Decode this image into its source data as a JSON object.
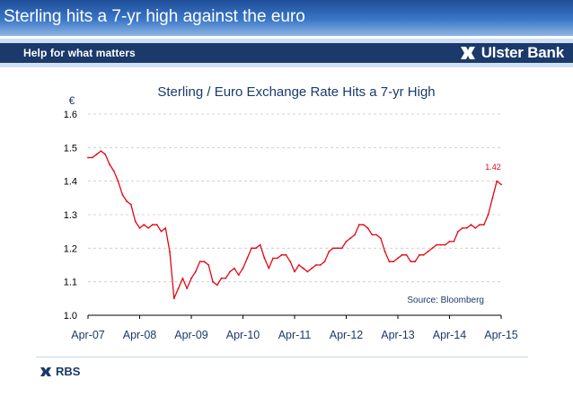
{
  "slide": {
    "title": "Sterling hits a 7-yr high against the euro"
  },
  "banner": {
    "tagline": "Help for what matters",
    "brand": "Ulster Bank"
  },
  "footer": {
    "brand": "RBS"
  },
  "colors": {
    "line": "#e30613",
    "axis_text": "#1b3a6b",
    "banner": "#1b3a6b"
  },
  "chart_data": {
    "type": "line",
    "title": "Sterling / Euro Exchange Rate Hits a 7-yr High",
    "ylabel": "€",
    "xlabel": "",
    "ylim": [
      1.0,
      1.6
    ],
    "yticks": [
      "1.0",
      "1.1",
      "1.2",
      "1.3",
      "1.4",
      "1.5",
      "1.6"
    ],
    "xticks": [
      "Apr-07",
      "Apr-08",
      "Apr-09",
      "Apr-10",
      "Apr-11",
      "Apr-12",
      "Apr-13",
      "Apr-14",
      "Apr-15"
    ],
    "grid": "horizontal dashed",
    "annotation_label": "1.42",
    "source": "Source: Bloomberg",
    "series": [
      {
        "x": [
          "Apr-07",
          "May-07",
          "Jun-07",
          "Jul-07",
          "Aug-07",
          "Sep-07",
          "Oct-07",
          "Nov-07",
          "Dec-07",
          "Jan-08",
          "Feb-08",
          "Mar-08",
          "Apr-08",
          "May-08",
          "Jun-08",
          "Jul-08",
          "Aug-08",
          "Sep-08",
          "Oct-08",
          "Nov-08",
          "Dec-08",
          "Jan-09",
          "Feb-09",
          "Mar-09",
          "Apr-09",
          "May-09",
          "Jun-09",
          "Jul-09",
          "Aug-09",
          "Sep-09",
          "Oct-09",
          "Nov-09",
          "Dec-09",
          "Jan-10",
          "Feb-10",
          "Mar-10",
          "Apr-10",
          "May-10",
          "Jun-10",
          "Jul-10",
          "Aug-10",
          "Sep-10",
          "Oct-10",
          "Nov-10",
          "Dec-10",
          "Jan-11",
          "Feb-11",
          "Mar-11",
          "Apr-11",
          "May-11",
          "Jun-11",
          "Jul-11",
          "Aug-11",
          "Sep-11",
          "Oct-11",
          "Nov-11",
          "Dec-11",
          "Jan-12",
          "Feb-12",
          "Mar-12",
          "Apr-12",
          "May-12",
          "Jun-12",
          "Jul-12",
          "Aug-12",
          "Sep-12",
          "Oct-12",
          "Nov-12",
          "Dec-12",
          "Jan-13",
          "Feb-13",
          "Mar-13",
          "Apr-13",
          "May-13",
          "Jun-13",
          "Jul-13",
          "Aug-13",
          "Sep-13",
          "Oct-13",
          "Nov-13",
          "Dec-13",
          "Jan-14",
          "Feb-14",
          "Mar-14",
          "Apr-14",
          "May-14",
          "Jun-14",
          "Jul-14",
          "Aug-14",
          "Sep-14",
          "Oct-14",
          "Nov-14",
          "Dec-14",
          "Jan-15",
          "Feb-15",
          "Mar-15",
          "Apr-15"
        ],
        "values": [
          1.47,
          1.47,
          1.48,
          1.49,
          1.48,
          1.45,
          1.43,
          1.4,
          1.36,
          1.34,
          1.33,
          1.28,
          1.26,
          1.27,
          1.26,
          1.27,
          1.27,
          1.25,
          1.26,
          1.19,
          1.05,
          1.08,
          1.11,
          1.08,
          1.11,
          1.13,
          1.16,
          1.16,
          1.15,
          1.1,
          1.09,
          1.11,
          1.11,
          1.13,
          1.14,
          1.12,
          1.14,
          1.17,
          1.2,
          1.2,
          1.21,
          1.17,
          1.14,
          1.17,
          1.17,
          1.18,
          1.18,
          1.16,
          1.13,
          1.15,
          1.14,
          1.13,
          1.14,
          1.15,
          1.15,
          1.16,
          1.19,
          1.2,
          1.2,
          1.2,
          1.22,
          1.23,
          1.24,
          1.27,
          1.27,
          1.26,
          1.24,
          1.24,
          1.23,
          1.19,
          1.16,
          1.16,
          1.17,
          1.18,
          1.18,
          1.16,
          1.16,
          1.18,
          1.18,
          1.19,
          1.2,
          1.21,
          1.21,
          1.21,
          1.22,
          1.22,
          1.25,
          1.26,
          1.26,
          1.27,
          1.26,
          1.27,
          1.27,
          1.3,
          1.35,
          1.4,
          1.39
        ]
      }
    ]
  }
}
